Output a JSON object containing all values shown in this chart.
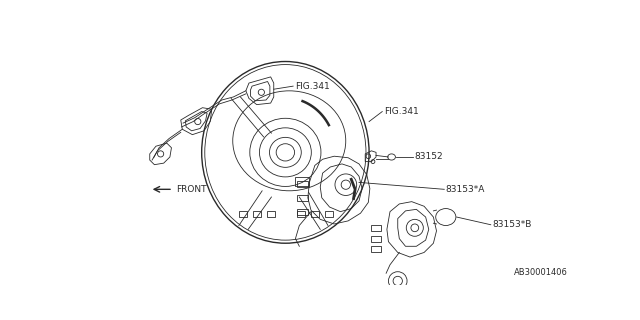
{
  "bg_color": "#ffffff",
  "line_color": "#2a2a2a",
  "text_color": "#2a2a2a",
  "figsize": [
    6.4,
    3.2
  ],
  "dpi": 100,
  "labels": {
    "fig341_top": "FIG.341",
    "fig341_center": "FIG.341",
    "part83152": "83152",
    "part83153a": "83153*A",
    "part83153b": "83153*B",
    "front": "FRONT",
    "diagram_id": "AB30001406"
  }
}
